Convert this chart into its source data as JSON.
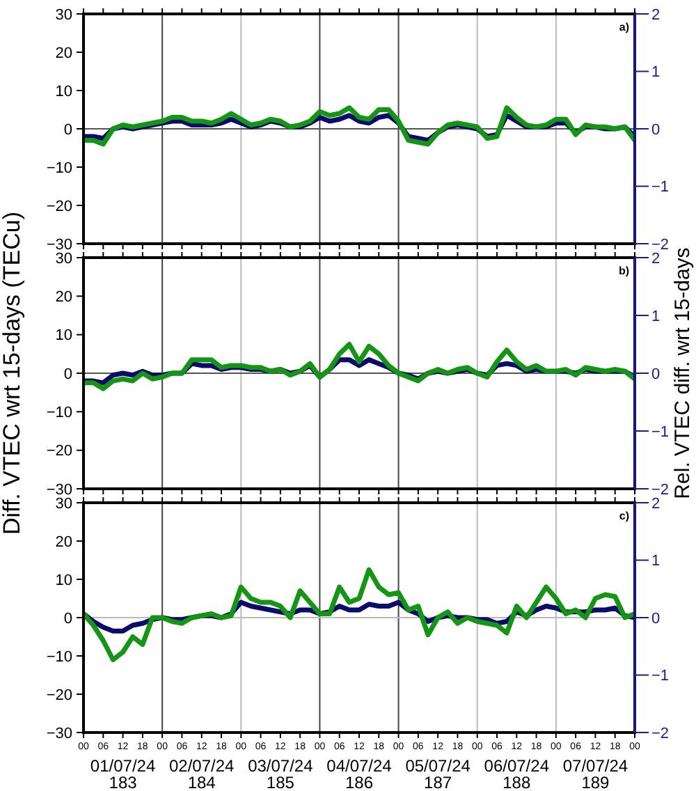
{
  "chart_data": [
    {
      "type": "line",
      "title": "a)",
      "tick_labels": "y",
      "xlim": [
        0,
        168
      ],
      "ylim": [
        -30,
        30
      ],
      "y2lim": [
        -2,
        2
      ],
      "xticks": [
        {
          "value": 0,
          "label": null
        },
        {
          "value": 6,
          "label": null
        },
        {
          "value": 12,
          "label": null
        },
        {
          "value": 18,
          "label": null
        },
        {
          "value": 24,
          "label": null
        },
        {
          "value": 30,
          "label": null
        },
        {
          "value": 36,
          "label": null
        },
        {
          "value": 42,
          "label": null
        },
        {
          "value": 48,
          "label": null
        },
        {
          "value": 54,
          "label": null
        },
        {
          "value": 60,
          "label": null
        },
        {
          "value": 66,
          "label": null
        },
        {
          "value": 72,
          "label": null
        },
        {
          "value": 78,
          "label": null
        },
        {
          "value": 84,
          "label": null
        },
        {
          "value": 90,
          "label": null
        },
        {
          "value": 96,
          "label": null
        },
        {
          "value": 102,
          "label": null
        },
        {
          "value": 108,
          "label": null
        },
        {
          "value": 114,
          "label": null
        },
        {
          "value": 120,
          "label": null
        },
        {
          "value": 126,
          "label": null
        },
        {
          "value": 132,
          "label": null
        },
        {
          "value": 138,
          "label": null
        },
        {
          "value": 144,
          "label": null
        },
        {
          "value": 150,
          "label": null
        },
        {
          "value": 156,
          "label": null
        },
        {
          "value": 162,
          "label": null
        },
        {
          "value": 168,
          "label": null
        }
      ],
      "yticks": [
        -30,
        -20,
        -10,
        0,
        10,
        20,
        30
      ],
      "y2ticks": [
        -2,
        -1,
        0,
        1,
        2
      ],
      "ref_lines": [
        {
          "axis": "x",
          "value": 24,
          "color": "#444444"
        },
        {
          "axis": "x",
          "value": 48,
          "color": "#bbbbbb"
        },
        {
          "axis": "x",
          "value": 72,
          "color": "#444444"
        },
        {
          "axis": "x",
          "value": 96,
          "color": "#444444"
        },
        {
          "axis": "x",
          "value": 120,
          "color": "#bbbbbb"
        },
        {
          "axis": "x",
          "value": 144,
          "color": "#bbbbbb"
        },
        {
          "axis": "y",
          "value": 0,
          "color": "#555555"
        }
      ],
      "x": [
        0,
        3,
        6,
        9,
        12,
        15,
        18,
        21,
        24,
        27,
        30,
        33,
        36,
        39,
        42,
        45,
        48,
        51,
        54,
        57,
        60,
        63,
        66,
        69,
        72,
        75,
        78,
        81,
        84,
        87,
        90,
        93,
        96,
        99,
        102,
        105,
        108,
        111,
        114,
        117,
        120,
        123,
        126,
        129,
        132,
        135,
        138,
        141,
        144,
        147,
        150,
        153,
        156,
        159,
        162,
        165,
        168
      ],
      "series": [
        {
          "color": "#0b0b6b",
          "values": [
            -2,
            -2,
            -2.5,
            0,
            0.5,
            0,
            0.5,
            1,
            1.5,
            2,
            2,
            1,
            1,
            1,
            1.5,
            2.5,
            1.5,
            0.5,
            1,
            2,
            1.5,
            0.5,
            0.5,
            1.5,
            3,
            2,
            2.5,
            3.5,
            2,
            1.5,
            3,
            3.5,
            1.5,
            -2,
            -2.5,
            -3,
            -1,
            0.5,
            1,
            0.5,
            0,
            -2,
            -1.5,
            3.5,
            2,
            0.5,
            0.5,
            0.5,
            1.5,
            1.5,
            -1,
            0.5,
            0.5,
            0,
            0,
            0.5,
            -2
          ]
        },
        {
          "color": "#149614",
          "values": [
            -3,
            -3,
            -4,
            0,
            1,
            0.5,
            1,
            1.5,
            2,
            3,
            3,
            2,
            2,
            1.5,
            2.5,
            4,
            2.5,
            1,
            1.5,
            2.5,
            2,
            0.5,
            1,
            2,
            4.5,
            3.5,
            4,
            5.5,
            3,
            2.5,
            5,
            5,
            2,
            -3,
            -3.5,
            -4,
            -1,
            1,
            1.5,
            1,
            0.5,
            -2.5,
            -2,
            5.5,
            3,
            1,
            0.5,
            1,
            2.5,
            2.5,
            -1.5,
            1,
            0.5,
            0.5,
            0,
            0.5,
            -3
          ]
        }
      ]
    },
    {
      "type": "line",
      "title": "b)",
      "tick_labels": "y",
      "ylabel": "Diff. VTEC wrt 15-days (TECu)",
      "y2label": "Rel. VTEC diff. wrt 15-days",
      "xlim": [
        0,
        168
      ],
      "ylim": [
        -30,
        30
      ],
      "y2lim": [
        -2,
        2
      ],
      "xticks": [
        {
          "value": 0,
          "label": null
        },
        {
          "value": 6,
          "label": null
        },
        {
          "value": 12,
          "label": null
        },
        {
          "value": 18,
          "label": null
        },
        {
          "value": 24,
          "label": null
        },
        {
          "value": 30,
          "label": null
        },
        {
          "value": 36,
          "label": null
        },
        {
          "value": 42,
          "label": null
        },
        {
          "value": 48,
          "label": null
        },
        {
          "value": 54,
          "label": null
        },
        {
          "value": 60,
          "label": null
        },
        {
          "value": 66,
          "label": null
        },
        {
          "value": 72,
          "label": null
        },
        {
          "value": 78,
          "label": null
        },
        {
          "value": 84,
          "label": null
        },
        {
          "value": 90,
          "label": null
        },
        {
          "value": 96,
          "label": null
        },
        {
          "value": 102,
          "label": null
        },
        {
          "value": 108,
          "label": null
        },
        {
          "value": 114,
          "label": null
        },
        {
          "value": 120,
          "label": null
        },
        {
          "value": 126,
          "label": null
        },
        {
          "value": 132,
          "label": null
        },
        {
          "value": 138,
          "label": null
        },
        {
          "value": 144,
          "label": null
        },
        {
          "value": 150,
          "label": null
        },
        {
          "value": 156,
          "label": null
        },
        {
          "value": 162,
          "label": null
        },
        {
          "value": 168,
          "label": null
        }
      ],
      "yticks": [
        -30,
        -20,
        -10,
        0,
        10,
        20,
        30
      ],
      "y2ticks": [
        -2,
        -1,
        0,
        1,
        2
      ],
      "ref_lines": [
        {
          "axis": "x",
          "value": 24,
          "color": "#444444"
        },
        {
          "axis": "x",
          "value": 48,
          "color": "#bbbbbb"
        },
        {
          "axis": "x",
          "value": 72,
          "color": "#444444"
        },
        {
          "axis": "x",
          "value": 96,
          "color": "#444444"
        },
        {
          "axis": "x",
          "value": 120,
          "color": "#bbbbbb"
        },
        {
          "axis": "x",
          "value": 144,
          "color": "#bbbbbb"
        },
        {
          "axis": "y",
          "value": 0,
          "color": "#555555"
        }
      ],
      "x": [
        0,
        3,
        6,
        9,
        12,
        15,
        18,
        21,
        24,
        27,
        30,
        33,
        36,
        39,
        42,
        45,
        48,
        51,
        54,
        57,
        60,
        63,
        66,
        69,
        72,
        75,
        78,
        81,
        84,
        87,
        90,
        93,
        96,
        99,
        102,
        105,
        108,
        111,
        114,
        117,
        120,
        123,
        126,
        129,
        132,
        135,
        138,
        141,
        144,
        147,
        150,
        153,
        156,
        159,
        162,
        165,
        168
      ],
      "series": [
        {
          "color": "#0b0b6b",
          "values": [
            -2,
            -2,
            -2.5,
            -0.5,
            0,
            -0.5,
            0.5,
            -0.5,
            -0.5,
            0,
            0,
            2.5,
            2,
            2,
            1,
            1.5,
            1.5,
            1,
            1,
            0.5,
            1,
            0,
            0.5,
            2,
            -1,
            1,
            3.5,
            3.5,
            2,
            3.5,
            2.5,
            1.5,
            0,
            -0.5,
            -1.5,
            0,
            0.5,
            0,
            0.5,
            1,
            0,
            -0.5,
            2,
            2.5,
            2,
            0.5,
            1,
            0.5,
            0.5,
            0.5,
            0,
            1,
            0.5,
            0.5,
            0.5,
            0.5,
            -1
          ]
        },
        {
          "color": "#149614",
          "values": [
            -2.5,
            -2.5,
            -4,
            -2,
            -1.5,
            -2,
            0,
            -1.5,
            -1,
            0,
            0,
            3.5,
            3.5,
            3.5,
            1.5,
            2,
            2,
            1.5,
            1.5,
            0.5,
            1,
            -0.5,
            0.5,
            2.5,
            -1,
            1,
            5,
            7.5,
            3,
            7,
            5,
            2,
            0,
            -1,
            -2,
            0,
            1,
            0,
            1,
            1.5,
            0,
            -1,
            3,
            6,
            3,
            1,
            2,
            0.5,
            0.5,
            1,
            -0.5,
            1.5,
            1,
            0.5,
            1,
            0.5,
            -1.5
          ]
        }
      ]
    },
    {
      "type": "line",
      "title": "c)",
      "xlim": [
        0,
        168
      ],
      "ylim": [
        -30,
        30
      ],
      "y2lim": [
        -2,
        2
      ],
      "xticks": [
        {
          "value": 0,
          "label": "00"
        },
        {
          "value": 6,
          "label": "06"
        },
        {
          "value": 12,
          "label": "12"
        },
        {
          "value": 18,
          "label": "18"
        },
        {
          "value": 24,
          "label": "00"
        },
        {
          "value": 30,
          "label": "06"
        },
        {
          "value": 36,
          "label": "12"
        },
        {
          "value": 42,
          "label": "18"
        },
        {
          "value": 48,
          "label": "00"
        },
        {
          "value": 54,
          "label": "06"
        },
        {
          "value": 60,
          "label": "12"
        },
        {
          "value": 66,
          "label": "18"
        },
        {
          "value": 72,
          "label": "00"
        },
        {
          "value": 78,
          "label": "06"
        },
        {
          "value": 84,
          "label": "12"
        },
        {
          "value": 90,
          "label": "18"
        },
        {
          "value": 96,
          "label": "00"
        },
        {
          "value": 102,
          "label": "06"
        },
        {
          "value": 108,
          "label": "12"
        },
        {
          "value": 114,
          "label": "18"
        },
        {
          "value": 120,
          "label": "00"
        },
        {
          "value": 126,
          "label": "06"
        },
        {
          "value": 132,
          "label": "12"
        },
        {
          "value": 138,
          "label": "18"
        },
        {
          "value": 144,
          "label": "00"
        },
        {
          "value": 150,
          "label": "06"
        },
        {
          "value": 156,
          "label": "12"
        },
        {
          "value": 162,
          "label": "18"
        },
        {
          "value": 168,
          "label": "00"
        }
      ],
      "yticks": [
        -30,
        -20,
        -10,
        0,
        10,
        20,
        30
      ],
      "y2ticks": [
        -2,
        -1,
        0,
        1,
        2
      ],
      "ref_lines": [
        {
          "axis": "x",
          "value": 24,
          "color": "#444444"
        },
        {
          "axis": "x",
          "value": 48,
          "color": "#bbbbbb"
        },
        {
          "axis": "x",
          "value": 72,
          "color": "#444444"
        },
        {
          "axis": "x",
          "value": 96,
          "color": "#444444"
        },
        {
          "axis": "x",
          "value": 120,
          "color": "#bbbbbb"
        },
        {
          "axis": "x",
          "value": 144,
          "color": "#bbbbbb"
        },
        {
          "axis": "y",
          "value": 0,
          "color": "#bbbbbb"
        }
      ],
      "annotations": [
        "01/07/24\n183",
        "02/07/24\n184",
        "03/07/24\n185",
        "04/07/24\n186",
        "05/07/24\n187",
        "06/07/24\n188",
        "07/07/24\n189"
      ],
      "x": [
        0,
        3,
        6,
        9,
        12,
        15,
        18,
        21,
        24,
        27,
        30,
        33,
        36,
        39,
        42,
        45,
        48,
        51,
        54,
        57,
        60,
        63,
        66,
        69,
        72,
        75,
        78,
        81,
        84,
        87,
        90,
        93,
        96,
        99,
        102,
        105,
        108,
        111,
        114,
        117,
        120,
        123,
        126,
        129,
        132,
        135,
        138,
        141,
        144,
        147,
        150,
        153,
        156,
        159,
        162,
        165,
        168
      ],
      "series": [
        {
          "color": "#0b0b6b",
          "values": [
            1,
            -1,
            -2.5,
            -3.5,
            -3.5,
            -2,
            -1.5,
            -0.5,
            0,
            -0.5,
            -0.5,
            0,
            0.5,
            0.5,
            0,
            1,
            4,
            3,
            2.5,
            2,
            1.5,
            1,
            2,
            2,
            1,
            1.5,
            3,
            2,
            2,
            3.5,
            3,
            3,
            4,
            2,
            1,
            -1,
            0,
            0.5,
            0,
            0,
            -0.5,
            -0.5,
            -1.5,
            -1,
            1.5,
            0.5,
            2,
            3,
            2.5,
            1.5,
            1.5,
            1.5,
            2,
            2,
            2.5,
            0.5,
            0
          ]
        },
        {
          "color": "#149614",
          "values": [
            1,
            -2,
            -6,
            -11,
            -9,
            -5,
            -7,
            0,
            0,
            -1,
            -1.5,
            0,
            0.5,
            1,
            0,
            0.5,
            8,
            5,
            4,
            4,
            3,
            0,
            7,
            4,
            1,
            1,
            8,
            4,
            5,
            12.5,
            8,
            6,
            6.5,
            2,
            3,
            -4.5,
            0,
            1.5,
            -1.5,
            0,
            -1,
            -1.5,
            -2,
            -4,
            3,
            0,
            4,
            8,
            5,
            1,
            2,
            0,
            5,
            6,
            5.5,
            0,
            1
          ]
        }
      ]
    }
  ]
}
